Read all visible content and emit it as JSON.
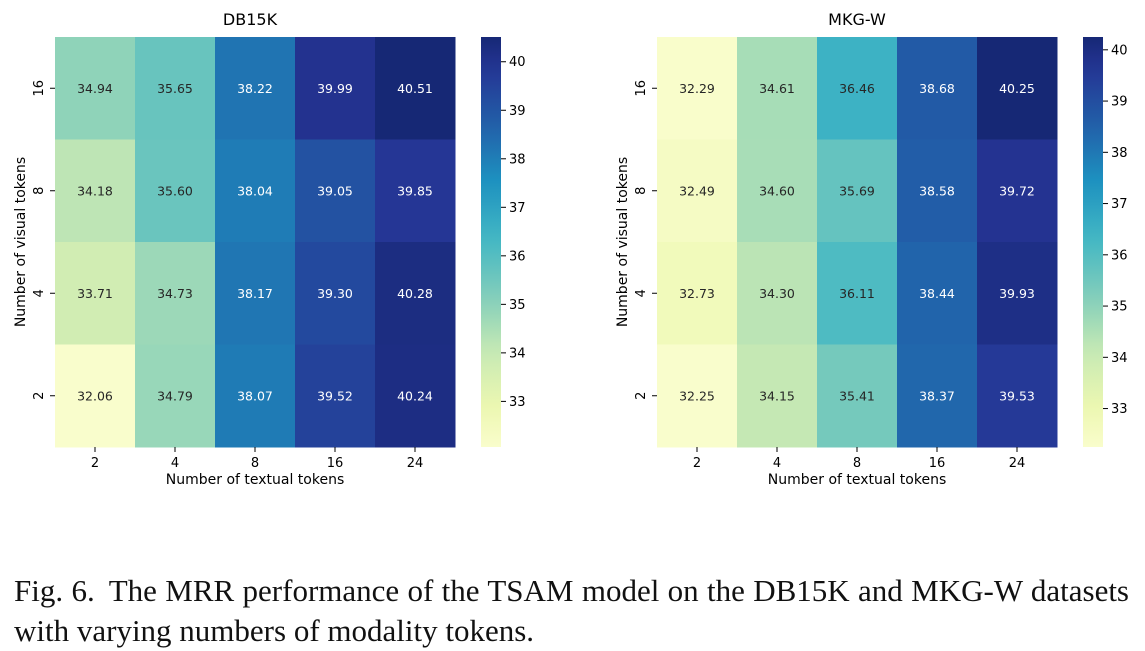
{
  "caption": {
    "label": "Fig. 6.",
    "text": "The MRR performance of the TSAM model on the DB15K and MKG-W datasets with varying numbers of modality tokens."
  },
  "chart_data": [
    {
      "type": "heatmap",
      "title": "DB15K",
      "xlabel": "Number of textual tokens",
      "ylabel": "Number of visual tokens",
      "x_categories": [
        "2",
        "4",
        "8",
        "16",
        "24"
      ],
      "y_categories": [
        "16",
        "8",
        "4",
        "2"
      ],
      "values": [
        [
          34.94,
          35.65,
          38.22,
          39.99,
          40.51
        ],
        [
          34.18,
          35.6,
          38.04,
          39.05,
          39.85
        ],
        [
          33.71,
          34.73,
          38.17,
          39.3,
          40.28
        ],
        [
          32.06,
          34.79,
          38.07,
          39.52,
          40.24
        ]
      ],
      "colorbar": {
        "ticks": [
          33,
          34,
          35,
          36,
          37,
          38,
          39,
          40
        ],
        "range": [
          32.06,
          40.51
        ]
      },
      "colormap": "YlGnBu"
    },
    {
      "type": "heatmap",
      "title": "MKG-W",
      "xlabel": "Number of textual tokens",
      "ylabel": "Number of visual tokens",
      "x_categories": [
        "2",
        "4",
        "8",
        "16",
        "24"
      ],
      "y_categories": [
        "16",
        "8",
        "4",
        "2"
      ],
      "values": [
        [
          32.29,
          34.61,
          36.46,
          38.68,
          40.25
        ],
        [
          32.49,
          34.6,
          35.69,
          38.58,
          39.72
        ],
        [
          32.73,
          34.3,
          36.11,
          38.44,
          39.93
        ],
        [
          32.25,
          34.15,
          35.41,
          38.37,
          39.53
        ]
      ],
      "colorbar": {
        "ticks": [
          33,
          34,
          35,
          36,
          37,
          38,
          39,
          40
        ],
        "range": [
          32.25,
          40.25
        ]
      },
      "colormap": "YlGnBu"
    }
  ]
}
